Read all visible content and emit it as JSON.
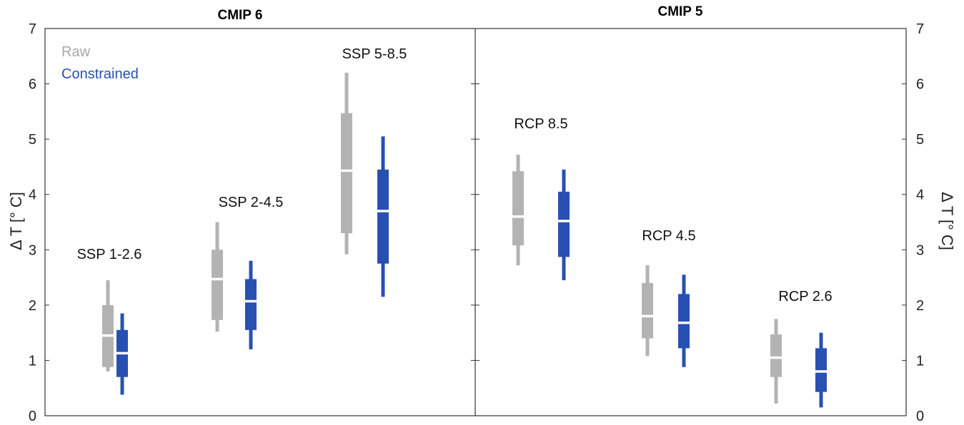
{
  "chart_data": {
    "type": "box",
    "ylabel_left": "Δ T [° C]",
    "ylabel_right": "Δ T [° C]",
    "ylim": [
      0,
      7
    ],
    "yticks": [
      "0",
      "1",
      "2",
      "3",
      "4",
      "5",
      "6",
      "7"
    ],
    "grid": false,
    "legend": {
      "placement": "top-left",
      "entries": [
        {
          "name": "Raw",
          "color": "#b3b3b3"
        },
        {
          "name": "Constrained",
          "color": "#2850b3"
        }
      ]
    },
    "panels": [
      {
        "title": "CMIP 6",
        "groups": [
          {
            "label": "SSP 1-2.6",
            "raw": {
              "min": 0.8,
              "q1": 0.88,
              "median": 1.45,
              "q3": 2.0,
              "max": 2.45
            },
            "constrained": {
              "min": 0.38,
              "q1": 0.7,
              "median": 1.13,
              "q3": 1.55,
              "max": 1.85
            }
          },
          {
            "label": "SSP 2-4.5",
            "raw": {
              "min": 1.52,
              "q1": 1.73,
              "median": 2.47,
              "q3": 3.0,
              "max": 3.5
            },
            "constrained": {
              "min": 1.2,
              "q1": 1.55,
              "median": 2.07,
              "q3": 2.47,
              "max": 2.8
            }
          },
          {
            "label": "SSP 5-8.5",
            "raw": {
              "min": 2.92,
              "q1": 3.3,
              "median": 4.43,
              "q3": 5.47,
              "max": 6.2
            },
            "constrained": {
              "min": 2.15,
              "q1": 2.75,
              "median": 3.7,
              "q3": 4.45,
              "max": 5.05
            }
          }
        ]
      },
      {
        "title": "CMIP 5",
        "groups": [
          {
            "label": "RCP 8.5",
            "raw": {
              "min": 2.72,
              "q1": 3.08,
              "median": 3.6,
              "q3": 4.42,
              "max": 4.72
            },
            "constrained": {
              "min": 2.45,
              "q1": 2.87,
              "median": 3.52,
              "q3": 4.05,
              "max": 4.45
            }
          },
          {
            "label": "RCP 4.5",
            "raw": {
              "min": 1.08,
              "q1": 1.4,
              "median": 1.8,
              "q3": 2.4,
              "max": 2.72
            },
            "constrained": {
              "min": 0.88,
              "q1": 1.22,
              "median": 1.68,
              "q3": 2.2,
              "max": 2.55
            }
          },
          {
            "label": "RCP 2.6",
            "raw": {
              "min": 0.22,
              "q1": 0.7,
              "median": 1.05,
              "q3": 1.47,
              "max": 1.75
            },
            "constrained": {
              "min": 0.15,
              "q1": 0.43,
              "median": 0.8,
              "q3": 1.22,
              "max": 1.5
            }
          }
        ]
      }
    ]
  }
}
